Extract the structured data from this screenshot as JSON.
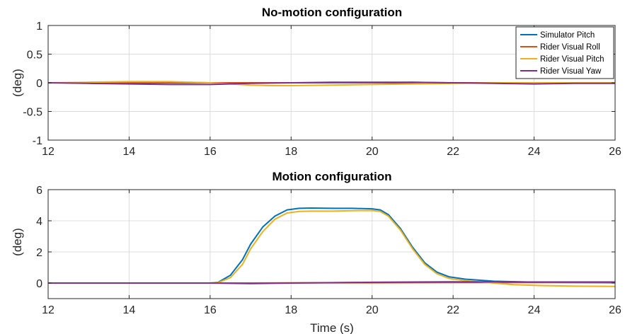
{
  "chart_data": [
    {
      "type": "line",
      "title": "No-motion configuration",
      "xlabel": "",
      "ylabel": "(deg)",
      "xlim": [
        12,
        26
      ],
      "ylim": [
        -1,
        1
      ],
      "xticks": [
        "12",
        "14",
        "16",
        "18",
        "20",
        "22",
        "24",
        "26"
      ],
      "yticks": [
        "-1",
        "-0.5",
        "0",
        "0.5",
        "1"
      ],
      "grid": true,
      "legend": "top-right",
      "series": [
        {
          "name": "Simulator Pitch",
          "color": "#0072BD",
          "x": [
            12,
            14,
            16,
            18,
            20,
            22,
            24,
            26
          ],
          "y": [
            0,
            0,
            0,
            0,
            0,
            0,
            0,
            0
          ]
        },
        {
          "name": "Rider Visual Roll",
          "color": "#D95319",
          "x": [
            12,
            13,
            14,
            15,
            16,
            17,
            18,
            19,
            20,
            21,
            22,
            23,
            24,
            25,
            26
          ],
          "y": [
            0.0,
            0.0,
            0.01,
            0.01,
            0.0,
            0.0,
            0.0,
            0.0,
            0.0,
            0.01,
            0.0,
            0.0,
            0.0,
            0.0,
            0.0
          ]
        },
        {
          "name": "Rider Visual Pitch",
          "color": "#EDB120",
          "x": [
            12,
            13,
            14,
            14.5,
            15,
            16,
            16.5,
            17,
            17.5,
            18,
            19,
            20,
            21,
            22,
            23,
            24,
            25,
            26
          ],
          "y": [
            0.0,
            0.01,
            0.02,
            0.02,
            0.02,
            0.0,
            -0.02,
            -0.04,
            -0.05,
            -0.05,
            -0.04,
            -0.03,
            -0.02,
            -0.01,
            0.0,
            0.0,
            0.0,
            0.0
          ]
        },
        {
          "name": "Rider Visual Yaw",
          "color": "#7E2F8E",
          "x": [
            12,
            13,
            14,
            15,
            16,
            17,
            18,
            19,
            20,
            21,
            22,
            23,
            24,
            25,
            26
          ],
          "y": [
            0.0,
            -0.01,
            -0.02,
            -0.03,
            -0.03,
            -0.01,
            0.0,
            0.01,
            0.01,
            0.01,
            0.0,
            -0.01,
            -0.02,
            -0.01,
            -0.01
          ]
        }
      ]
    },
    {
      "type": "line",
      "title": "Motion configuration",
      "xlabel": "Time (s)",
      "ylabel": "(deg)",
      "xlim": [
        12,
        26
      ],
      "ylim": [
        -1,
        6
      ],
      "xticks": [
        "12",
        "14",
        "16",
        "18",
        "20",
        "22",
        "24",
        "26"
      ],
      "yticks": [
        "0",
        "2",
        "4",
        "6"
      ],
      "grid": true,
      "legend": "none",
      "series": [
        {
          "name": "Simulator Pitch",
          "color": "#0072BD",
          "x": [
            12,
            14,
            16,
            16.2,
            16.5,
            16.8,
            17.0,
            17.3,
            17.6,
            17.9,
            18.2,
            18.5,
            19.0,
            19.5,
            20.0,
            20.2,
            20.4,
            20.7,
            21.0,
            21.3,
            21.6,
            21.9,
            22.3,
            23.0,
            24.0,
            25.0,
            26.0
          ],
          "y": [
            0,
            0,
            0,
            0.05,
            0.5,
            1.5,
            2.5,
            3.6,
            4.3,
            4.7,
            4.8,
            4.82,
            4.8,
            4.8,
            4.77,
            4.7,
            4.4,
            3.5,
            2.3,
            1.3,
            0.7,
            0.4,
            0.25,
            0.12,
            0.06,
            0.03,
            0.02
          ]
        },
        {
          "name": "Rider Visual Roll",
          "color": "#D95319",
          "x": [
            12,
            14,
            16,
            18,
            20,
            22,
            24,
            26
          ],
          "y": [
            0,
            0,
            0,
            0.01,
            0.02,
            0.03,
            0.03,
            0.03
          ]
        },
        {
          "name": "Rider Visual Pitch",
          "color": "#EDB120",
          "x": [
            12,
            14,
            16,
            16.2,
            16.5,
            16.8,
            17.0,
            17.3,
            17.6,
            17.9,
            18.2,
            18.5,
            19.0,
            19.5,
            20.0,
            20.2,
            20.4,
            20.7,
            21.0,
            21.3,
            21.6,
            21.9,
            22.3,
            23.0,
            23.5,
            24.0,
            25.0,
            26.0
          ],
          "y": [
            0,
            0,
            0,
            0.03,
            0.35,
            1.2,
            2.2,
            3.3,
            4.1,
            4.5,
            4.6,
            4.62,
            4.62,
            4.65,
            4.66,
            4.6,
            4.3,
            3.4,
            2.2,
            1.2,
            0.6,
            0.3,
            0.15,
            0.0,
            -0.1,
            -0.15,
            -0.2,
            -0.22
          ]
        },
        {
          "name": "Rider Visual Yaw",
          "color": "#7E2F8E",
          "x": [
            12,
            14,
            16,
            17,
            18,
            20,
            22,
            24,
            26
          ],
          "y": [
            0,
            0,
            0,
            -0.03,
            0,
            0.05,
            0.08,
            0.07,
            0.07
          ]
        }
      ]
    }
  ]
}
